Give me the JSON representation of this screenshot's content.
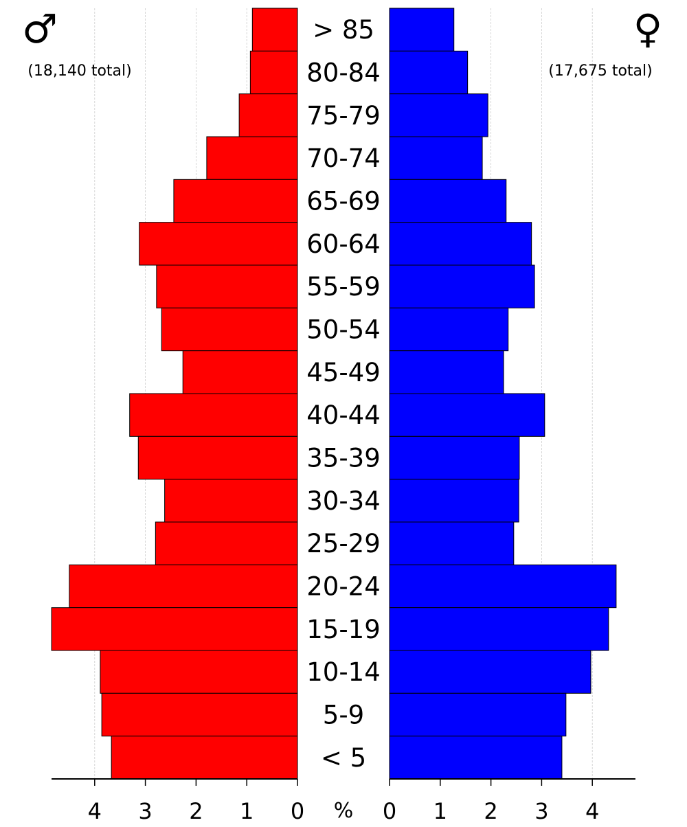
{
  "chart_data": {
    "type": "bar",
    "orientation": "horizontal-pyramid",
    "categories": [
      "> 85",
      "80-84",
      "75-79",
      "70-74",
      "65-69",
      "60-64",
      "55-59",
      "50-54",
      "45-49",
      "40-44",
      "35-39",
      "30-34",
      "25-29",
      "20-24",
      "15-19",
      "10-14",
      "5-9",
      "< 5"
    ],
    "series": [
      {
        "name": "♂",
        "total_label": "(18,140 total)",
        "color": "#ff0000",
        "side": "left",
        "values": [
          0.89,
          0.93,
          1.15,
          1.79,
          2.44,
          3.12,
          2.78,
          2.68,
          2.26,
          3.31,
          3.14,
          2.62,
          2.8,
          4.5,
          4.85,
          3.89,
          3.86,
          3.67
        ]
      },
      {
        "name": "♀",
        "total_label": "(17,675 total)",
        "color": "#0000ff",
        "side": "right",
        "values": [
          1.27,
          1.54,
          1.94,
          1.83,
          2.3,
          2.8,
          2.86,
          2.34,
          2.25,
          3.06,
          2.56,
          2.55,
          2.45,
          4.47,
          4.32,
          3.97,
          3.48,
          3.4
        ]
      }
    ],
    "xlabel": "%",
    "xlim": [
      0,
      4.85
    ],
    "xticks": [
      0,
      1,
      2,
      3,
      4
    ],
    "grid": true,
    "unit_label": "%"
  }
}
